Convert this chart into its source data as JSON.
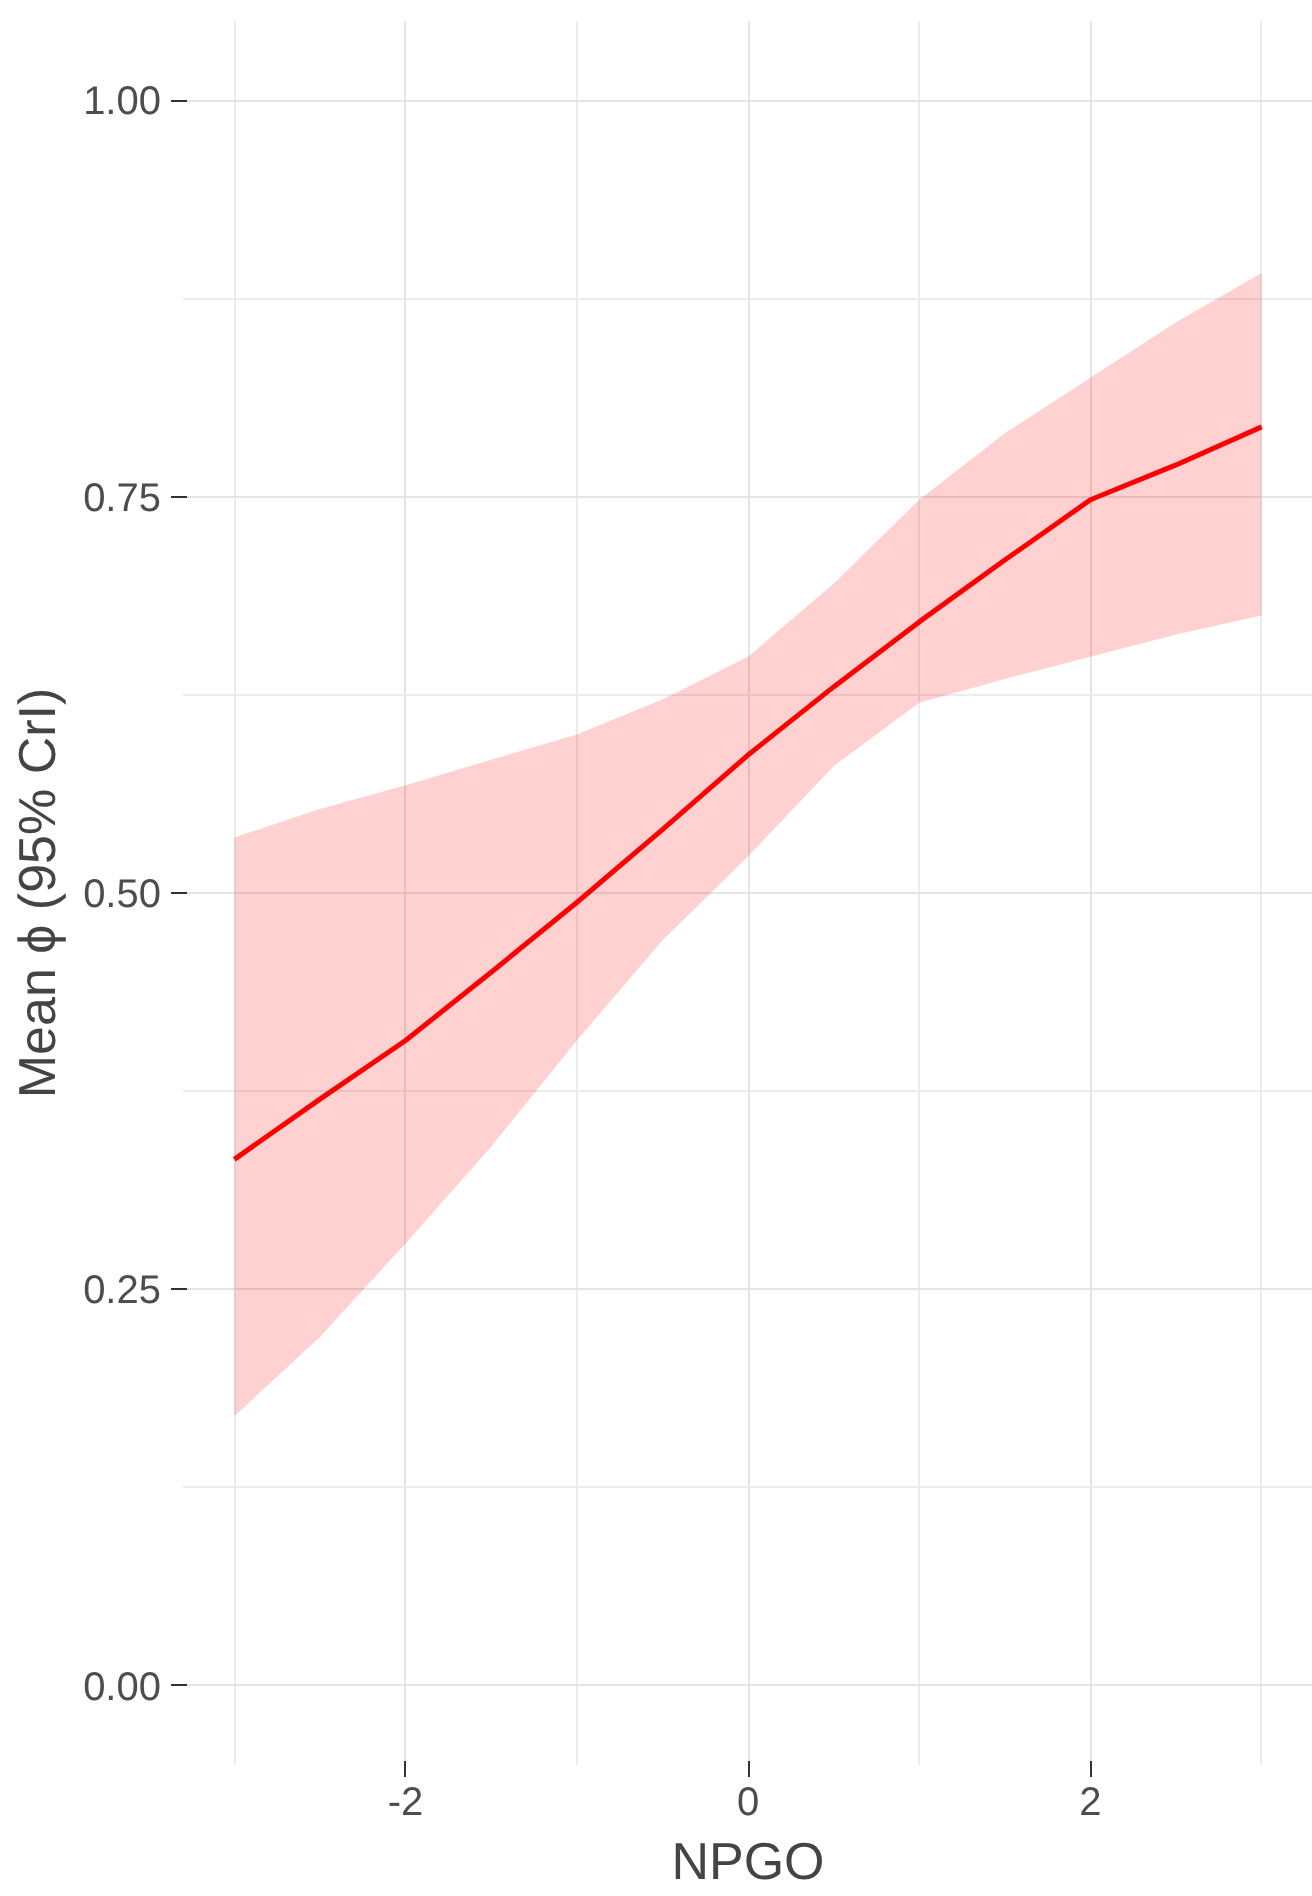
{
  "chart_data": {
    "type": "line",
    "xlabel": "NPGO",
    "ylabel": "Mean ϕ (95% CrI)",
    "x": [
      -3,
      -2.5,
      -2,
      -1.5,
      -1,
      -0.5,
      0,
      0.5,
      1,
      1.5,
      2,
      2.5,
      3
    ],
    "series": [
      {
        "color": "#ff0000",
        "values": [
          0.332,
          0.37,
          0.407,
          0.45,
          0.494,
          0.54,
          0.587,
          0.63,
          0.671,
          0.71,
          0.748,
          0.77,
          0.794
        ],
        "lower": [
          0.17,
          0.22,
          0.279,
          0.34,
          0.407,
          0.47,
          0.523,
          0.58,
          0.62,
          0.635,
          0.649,
          0.663,
          0.675
        ],
        "upper": [
          0.535,
          0.553,
          0.568,
          0.584,
          0.6,
          0.622,
          0.649,
          0.695,
          0.748,
          0.79,
          0.825,
          0.86,
          0.891
        ]
      }
    ],
    "xlim": [
      -3.3,
      3.3
    ],
    "ylim": [
      -0.05,
      1.05
    ],
    "xticks": [
      -2,
      0,
      2
    ],
    "yticks": [
      {
        "value": 0,
        "label": "0.00"
      },
      {
        "value": 0.25,
        "label": "0.25"
      },
      {
        "value": 0.5,
        "label": "0.50"
      },
      {
        "value": 0.75,
        "label": "0.75"
      },
      {
        "value": 1,
        "label": "1.00"
      }
    ],
    "grid": true,
    "marker": "none",
    "line_style": "solid"
  }
}
